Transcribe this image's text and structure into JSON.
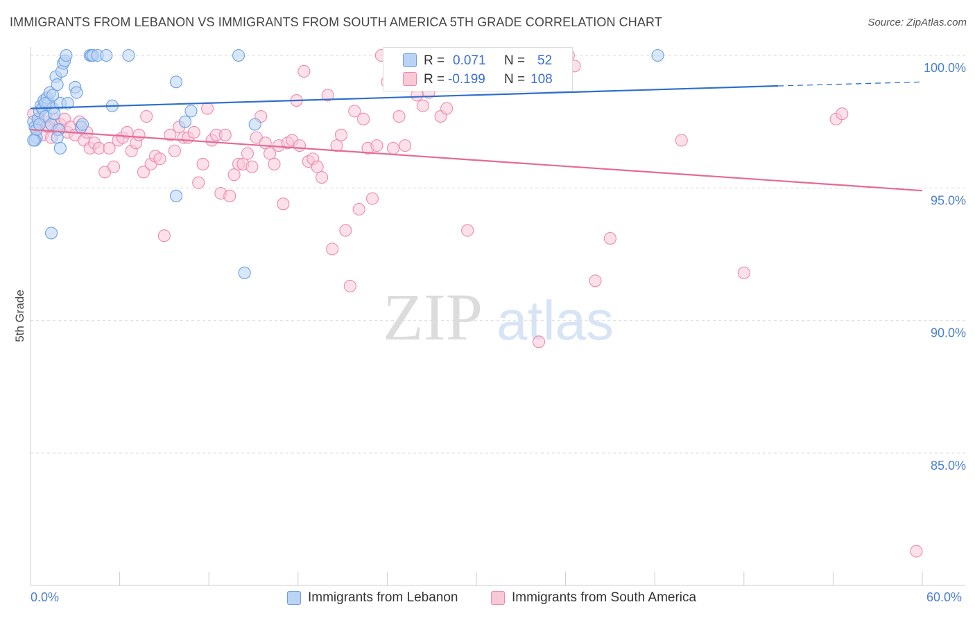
{
  "title": "IMMIGRANTS FROM LEBANON VS IMMIGRANTS FROM SOUTH AMERICA 5TH GRADE CORRELATION CHART",
  "source": "Source: ZipAtlas.com",
  "watermark": "ZIPatlas",
  "colors": {
    "blue": "#6d9fe0",
    "blue_fill": "#b9d4f5",
    "blue_line": "#2e6fce",
    "pink": "#ec8aad",
    "pink_fill": "#f9c9d8",
    "pink_line": "#e56a95",
    "axis_text": "#4a7fd0"
  },
  "stats": {
    "r_label": "R =",
    "n_label": "N =",
    "blue": {
      "r": "0.071",
      "n": "52"
    },
    "pink": {
      "r": "-0.199",
      "n": "108"
    }
  },
  "chart_data": {
    "type": "scatter",
    "title": "IMMIGRANTS FROM LEBANON VS IMMIGRANTS FROM SOUTH AMERICA 5TH GRADE CORRELATION CHART",
    "xlabel": "",
    "ylabel": "5th Grade",
    "xlim": [
      0,
      60
    ],
    "ylim": [
      80.5,
      100.7
    ],
    "x_tick_labels": [
      "0.0%",
      "60.0%"
    ],
    "y_ticks": [
      100,
      95,
      90,
      85
    ],
    "y_tick_labels": [
      "100.0%",
      "95.0%",
      "90.0%",
      "85.0%"
    ],
    "grid": true,
    "legend_position": "bottom",
    "series": [
      {
        "name": "Immigrants from Lebanon",
        "color": "#6d9fe0",
        "trend": {
          "x": [
            0,
            50.3
          ],
          "y": [
            98.0,
            98.85
          ],
          "dashed_to": [
            60,
            99.0
          ]
        },
        "points": [
          [
            0.2,
            97.5
          ],
          [
            0.3,
            97.3
          ],
          [
            0.4,
            96.9
          ],
          [
            0.3,
            96.8
          ],
          [
            0.5,
            97.6
          ],
          [
            0.6,
            97.9
          ],
          [
            0.7,
            98.1
          ],
          [
            0.8,
            98.0
          ],
          [
            0.9,
            98.3
          ],
          [
            1.0,
            97.7
          ],
          [
            1.1,
            98.4
          ],
          [
            1.2,
            98.2
          ],
          [
            1.3,
            98.6
          ],
          [
            1.4,
            97.4
          ],
          [
            1.5,
            98.0
          ],
          [
            1.6,
            97.8
          ],
          [
            1.7,
            99.2
          ],
          [
            1.8,
            98.9
          ],
          [
            1.9,
            97.2
          ],
          [
            2.0,
            98.2
          ],
          [
            2.1,
            99.4
          ],
          [
            2.2,
            99.7
          ],
          [
            2.3,
            99.8
          ],
          [
            2.4,
            100.0
          ],
          [
            2.5,
            98.2
          ],
          [
            1.8,
            96.9
          ],
          [
            2.0,
            96.5
          ],
          [
            3.0,
            98.8
          ],
          [
            3.4,
            97.3
          ],
          [
            3.5,
            97.4
          ],
          [
            4.0,
            100.0
          ],
          [
            4.1,
            100.0
          ],
          [
            4.2,
            100.0
          ],
          [
            4.5,
            100.0
          ],
          [
            5.1,
            100.0
          ],
          [
            5.5,
            98.1
          ],
          [
            6.6,
            100.0
          ],
          [
            9.8,
            99.0
          ],
          [
            10.4,
            97.5
          ],
          [
            10.8,
            97.9
          ],
          [
            9.8,
            94.7
          ],
          [
            14.0,
            100.0
          ],
          [
            15.1,
            97.4
          ],
          [
            14.4,
            91.8
          ],
          [
            42.2,
            100.0
          ],
          [
            1.4,
            93.3
          ],
          [
            0.4,
            97.2
          ],
          [
            0.2,
            96.8
          ],
          [
            0.6,
            97.4
          ],
          [
            1.0,
            98.2
          ],
          [
            1.5,
            98.5
          ],
          [
            3.1,
            98.6
          ]
        ]
      },
      {
        "name": "Immigrants from South America",
        "color": "#ec8aad",
        "trend": {
          "x": [
            0,
            60
          ],
          "y": [
            97.2,
            94.9
          ]
        },
        "points": [
          [
            0.2,
            97.8
          ],
          [
            0.4,
            97.2
          ],
          [
            0.6,
            97.5
          ],
          [
            0.8,
            97.0
          ],
          [
            1.0,
            97.5
          ],
          [
            1.2,
            97.3
          ],
          [
            1.4,
            96.9
          ],
          [
            1.6,
            97.6
          ],
          [
            1.8,
            97.2
          ],
          [
            2.0,
            97.4
          ],
          [
            2.3,
            97.6
          ],
          [
            2.5,
            97.1
          ],
          [
            2.7,
            97.3
          ],
          [
            3.0,
            97.0
          ],
          [
            3.3,
            97.5
          ],
          [
            3.6,
            96.8
          ],
          [
            3.8,
            97.1
          ],
          [
            4.0,
            96.5
          ],
          [
            4.3,
            96.7
          ],
          [
            4.6,
            96.5
          ],
          [
            5.0,
            95.6
          ],
          [
            5.3,
            96.5
          ],
          [
            5.6,
            95.8
          ],
          [
            5.9,
            96.8
          ],
          [
            6.2,
            96.9
          ],
          [
            6.5,
            97.1
          ],
          [
            6.8,
            96.4
          ],
          [
            7.1,
            96.7
          ],
          [
            7.3,
            97.0
          ],
          [
            7.6,
            95.6
          ],
          [
            7.8,
            97.7
          ],
          [
            8.1,
            95.9
          ],
          [
            8.4,
            96.2
          ],
          [
            8.7,
            96.1
          ],
          [
            9.0,
            93.2
          ],
          [
            9.4,
            97.0
          ],
          [
            9.7,
            96.4
          ],
          [
            10.0,
            97.3
          ],
          [
            10.3,
            96.9
          ],
          [
            10.6,
            96.9
          ],
          [
            11.0,
            97.1
          ],
          [
            11.3,
            95.2
          ],
          [
            11.6,
            95.9
          ],
          [
            11.9,
            98.0
          ],
          [
            12.2,
            96.8
          ],
          [
            12.5,
            97.0
          ],
          [
            12.8,
            94.8
          ],
          [
            13.1,
            97.0
          ],
          [
            13.4,
            94.7
          ],
          [
            13.7,
            95.5
          ],
          [
            14.0,
            95.9
          ],
          [
            14.3,
            95.9
          ],
          [
            14.6,
            96.3
          ],
          [
            14.9,
            95.8
          ],
          [
            15.2,
            96.9
          ],
          [
            15.5,
            97.7
          ],
          [
            15.8,
            96.7
          ],
          [
            16.1,
            96.3
          ],
          [
            16.4,
            95.9
          ],
          [
            16.7,
            96.6
          ],
          [
            17.0,
            94.4
          ],
          [
            17.3,
            96.7
          ],
          [
            17.6,
            96.8
          ],
          [
            17.9,
            98.3
          ],
          [
            18.1,
            96.6
          ],
          [
            18.4,
            99.4
          ],
          [
            18.7,
            96.0
          ],
          [
            19.0,
            96.1
          ],
          [
            19.3,
            95.8
          ],
          [
            19.6,
            95.4
          ],
          [
            20.0,
            98.5
          ],
          [
            20.3,
            92.7
          ],
          [
            20.6,
            96.6
          ],
          [
            20.9,
            97.0
          ],
          [
            21.2,
            93.4
          ],
          [
            21.5,
            91.3
          ],
          [
            21.8,
            97.9
          ],
          [
            22.1,
            94.2
          ],
          [
            22.4,
            97.6
          ],
          [
            22.7,
            96.5
          ],
          [
            23.0,
            94.6
          ],
          [
            23.3,
            96.6
          ],
          [
            23.6,
            100.0
          ],
          [
            24.0,
            99.0
          ],
          [
            24.4,
            96.5
          ],
          [
            24.8,
            97.7
          ],
          [
            25.2,
            96.6
          ],
          [
            25.6,
            99.0
          ],
          [
            26.0,
            98.5
          ],
          [
            26.4,
            98.1
          ],
          [
            26.8,
            98.6
          ],
          [
            27.2,
            100.0
          ],
          [
            27.6,
            97.7
          ],
          [
            28.0,
            98.0
          ],
          [
            29.0,
            99.0
          ],
          [
            29.4,
            93.4
          ],
          [
            32.0,
            99.9
          ],
          [
            33.0,
            99.0
          ],
          [
            34.2,
            89.2
          ],
          [
            36.2,
            100.0
          ],
          [
            36.6,
            99.6
          ],
          [
            38.0,
            91.5
          ],
          [
            39.0,
            93.1
          ],
          [
            43.8,
            96.8
          ],
          [
            48.0,
            91.8
          ],
          [
            54.2,
            97.6
          ],
          [
            54.6,
            97.8
          ],
          [
            59.6,
            81.3
          ]
        ]
      }
    ]
  }
}
